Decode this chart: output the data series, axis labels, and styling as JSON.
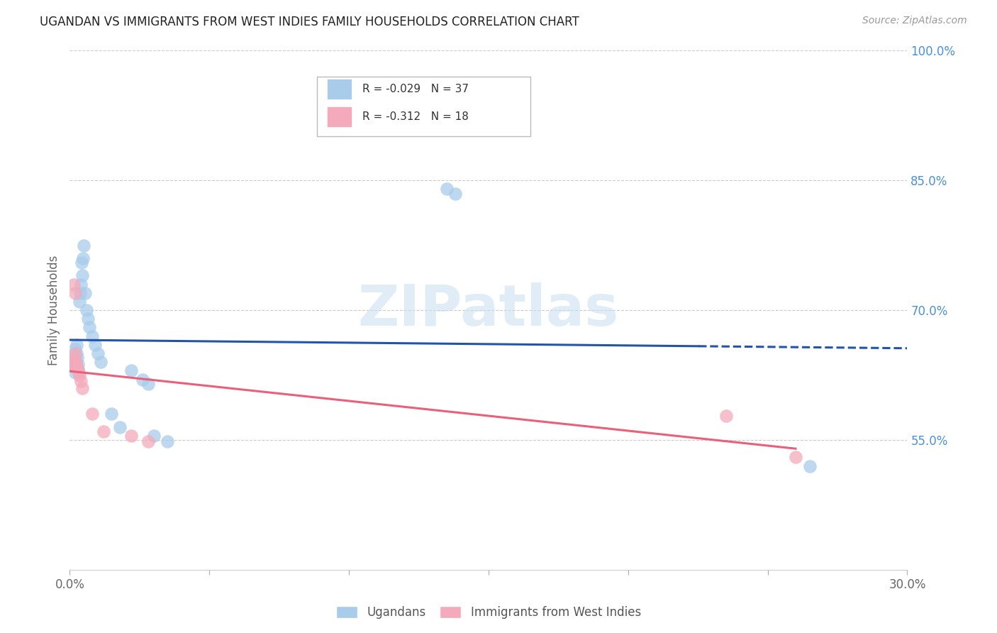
{
  "title": "UGANDAN VS IMMIGRANTS FROM WEST INDIES FAMILY HOUSEHOLDS CORRELATION CHART",
  "source": "Source: ZipAtlas.com",
  "ylabel": "Family Households",
  "xmin": 0.0,
  "xmax": 0.3,
  "ymin": 0.4,
  "ymax": 1.0,
  "yticks": [
    0.55,
    0.7,
    0.85,
    1.0
  ],
  "ytick_labels": [
    "55.0%",
    "70.0%",
    "85.0%",
    "100.0%"
  ],
  "xticks": [
    0.0,
    0.05,
    0.1,
    0.15,
    0.2,
    0.25,
    0.3
  ],
  "xtick_labels": [
    "0.0%",
    "",
    "",
    "",
    "",
    "",
    "30.0%"
  ],
  "legend_blue_r": "R = -0.029",
  "legend_blue_n": "N = 37",
  "legend_pink_r": "R = -0.312",
  "legend_pink_n": "N = 18",
  "label_ugandans": "Ugandans",
  "label_west_indies": "Immigrants from West Indies",
  "blue_color": "#A8CCEA",
  "pink_color": "#F4AABB",
  "blue_line_color": "#2255AA",
  "pink_line_color": "#E8607A",
  "watermark": "ZIPatlas",
  "background_color": "#FFFFFF",
  "grid_color": "#CCCCCC",
  "ugandan_x": [
    0.001,
    0.0015,
    0.0018,
    0.002,
    0.002,
    0.0022,
    0.0025,
    0.0025,
    0.0028,
    0.003,
    0.003,
    0.0032,
    0.0035,
    0.0038,
    0.004,
    0.0042,
    0.0045,
    0.0048,
    0.005,
    0.0055,
    0.006,
    0.0065,
    0.007,
    0.008,
    0.009,
    0.01,
    0.011,
    0.015,
    0.018,
    0.03,
    0.035,
    0.135,
    0.138,
    0.265,
    0.022,
    0.026,
    0.028
  ],
  "ugandan_y": [
    0.637,
    0.64,
    0.628,
    0.655,
    0.645,
    0.635,
    0.66,
    0.65,
    0.645,
    0.638,
    0.632,
    0.628,
    0.71,
    0.72,
    0.73,
    0.755,
    0.74,
    0.76,
    0.775,
    0.72,
    0.7,
    0.69,
    0.68,
    0.67,
    0.66,
    0.65,
    0.64,
    0.58,
    0.565,
    0.555,
    0.548,
    0.84,
    0.835,
    0.52,
    0.63,
    0.62,
    0.615
  ],
  "westindies_x": [
    0.0008,
    0.001,
    0.0012,
    0.0015,
    0.0018,
    0.002,
    0.0022,
    0.0025,
    0.003,
    0.0035,
    0.004,
    0.0045,
    0.008,
    0.012,
    0.022,
    0.028,
    0.235,
    0.26
  ],
  "westindies_y": [
    0.635,
    0.645,
    0.638,
    0.73,
    0.72,
    0.65,
    0.64,
    0.635,
    0.63,
    0.625,
    0.618,
    0.61,
    0.58,
    0.56,
    0.555,
    0.548,
    0.578,
    0.53
  ]
}
